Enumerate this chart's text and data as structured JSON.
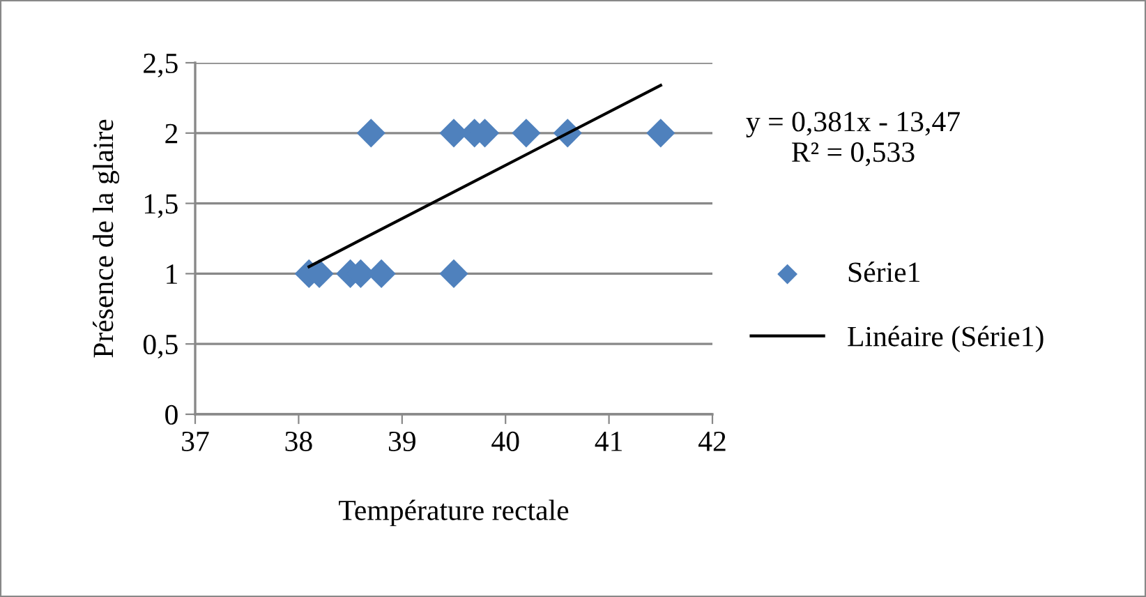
{
  "chart_data": {
    "type": "scatter",
    "xlabel": "Température rectale",
    "ylabel": "Présence de la glaire",
    "annotations": [
      "y = 0,381x - 13,47\nR² = 0,533"
    ],
    "series": [
      {
        "name": "Série1",
        "color": "#4f81bd",
        "marker": "diamond",
        "x": [
          38.1,
          38.2,
          38.5,
          38.6,
          38.8,
          39.5,
          38.7,
          39.5,
          39.7,
          39.8,
          40.2,
          40.6,
          41.5
        ],
        "values": [
          1,
          1,
          1,
          1,
          1,
          1,
          2,
          2,
          2,
          2,
          2,
          2,
          2
        ]
      },
      {
        "name": "Linéaire (Série1)",
        "type": "line",
        "color": "#000000",
        "marker": "none",
        "line_style": "solid",
        "x": [
          38.1,
          41.5
        ],
        "values": [
          1.05,
          2.34
        ]
      }
    ],
    "xlim": [
      37,
      42
    ],
    "xticks": [
      37,
      38,
      39,
      40,
      41,
      42
    ],
    "ylim": [
      0,
      2.5
    ],
    "yticks": [
      0,
      {
        "value": 0.5,
        "label": "0,5"
      },
      1,
      {
        "value": 1.5,
        "label": "1,5"
      },
      2,
      {
        "value": 2.5,
        "label": "2,5"
      }
    ],
    "grid": "y",
    "legend": "right"
  }
}
